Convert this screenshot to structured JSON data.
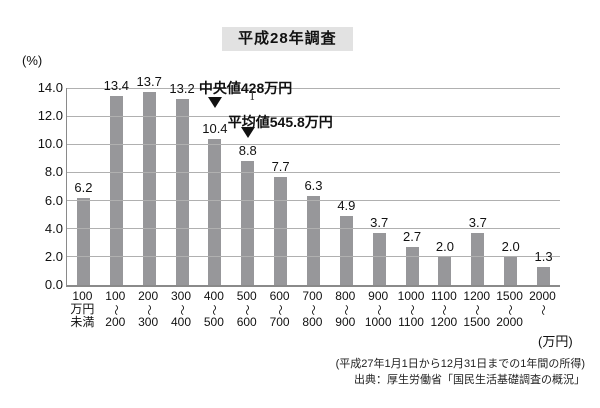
{
  "title": "平成28年調査",
  "y_axis_unit": "(%)",
  "x_axis_unit": "(万円)",
  "footer": {
    "note": "(平成27年1月1日から12月31日までの1年間の所得)",
    "source": "出典：厚生労働省「国民生活基礎調査の概況」"
  },
  "colors": {
    "bar": "#97979a",
    "gridline": "#b0b0b0",
    "axis": "#8a8a8a",
    "title_background": "#e2e2e2",
    "text": "#111111"
  },
  "cursor_artifact": "I",
  "chart_data": {
    "type": "bar",
    "title": "平成28年調査",
    "xlabel": "(万円)",
    "ylabel": "(%)",
    "ylim": [
      0,
      14
    ],
    "grid": true,
    "legend": false,
    "yticks": [
      "14.0",
      "12.0",
      "10.0",
      "8.0",
      "6.0",
      "4.0",
      "2.0",
      "0.0"
    ],
    "categories": [
      "100万円未満",
      "100〜200",
      "200〜300",
      "300〜400",
      "400〜500",
      "500〜600",
      "600〜700",
      "700〜800",
      "800〜900",
      "900〜1000",
      "1000〜1100",
      "1100〜1200",
      "1200〜1500",
      "1500〜2000",
      "2000〜"
    ],
    "category_lines": [
      {
        "lines": [
          "100",
          "万円",
          "未満"
        ],
        "tilde": false
      },
      {
        "lines": [
          "100",
          "200"
        ],
        "tilde": true
      },
      {
        "lines": [
          "200",
          "300"
        ],
        "tilde": true
      },
      {
        "lines": [
          "300",
          "400"
        ],
        "tilde": true
      },
      {
        "lines": [
          "400",
          "500"
        ],
        "tilde": true
      },
      {
        "lines": [
          "500",
          "600"
        ],
        "tilde": true
      },
      {
        "lines": [
          "600",
          "700"
        ],
        "tilde": true
      },
      {
        "lines": [
          "700",
          "800"
        ],
        "tilde": true
      },
      {
        "lines": [
          "800",
          "900"
        ],
        "tilde": true
      },
      {
        "lines": [
          "900",
          "1000"
        ],
        "tilde": true
      },
      {
        "lines": [
          "1000",
          "1100"
        ],
        "tilde": true
      },
      {
        "lines": [
          "1100",
          "1200"
        ],
        "tilde": true
      },
      {
        "lines": [
          "1200",
          "1500"
        ],
        "tilde": true
      },
      {
        "lines": [
          "1500",
          "2000"
        ],
        "tilde": true
      },
      {
        "lines": [
          "2000"
        ],
        "tilde": true
      }
    ],
    "values": [
      6.2,
      13.4,
      13.7,
      13.2,
      10.4,
      8.8,
      7.7,
      6.3,
      4.9,
      3.7,
      2.7,
      2.0,
      3.7,
      2.0,
      1.3
    ],
    "value_labels": [
      "6.2",
      "13.4",
      "13.7",
      "13.2",
      "10.4",
      "8.8",
      "7.7",
      "6.3",
      "4.9",
      "3.7",
      "2.7",
      "2.0",
      "3.7",
      "2.0",
      "1.3"
    ],
    "annotations": [
      {
        "label": "中央値428万円",
        "marker": "▼",
        "bar_index": 4
      },
      {
        "label": "平均値545.8万円",
        "marker": "▼",
        "bar_index": 5
      }
    ]
  }
}
